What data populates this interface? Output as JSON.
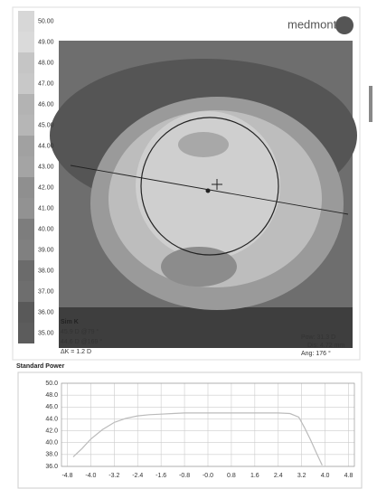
{
  "logo": "medmont",
  "scale": [
    "50.00",
    "49.00",
    "48.00",
    "47.00",
    "46.00",
    "45.00",
    "44.00",
    "43.00",
    "42.00",
    "41.00",
    "40.00",
    "39.00",
    "38.00",
    "37.00",
    "36.00",
    "35.00"
  ],
  "sim_k": {
    "title": "Sim K",
    "lines": [
      "45.9 D @79 °",
      "44.6 D @169 °",
      "ΔK = 1.2 D"
    ]
  },
  "cursor": [
    "Pow: 31.3 D",
    "Dis: 4.72 mm",
    "Ang: 176 °"
  ],
  "profile": {
    "type": "line",
    "title": "Standard Power",
    "x": [
      -4.6,
      -4.3,
      -4.0,
      -3.6,
      -3.2,
      -2.8,
      -2.4,
      -2.0,
      -1.6,
      -1.2,
      -0.8,
      -0.4,
      0,
      0.4,
      0.8,
      1.2,
      1.6,
      2.0,
      2.4,
      2.8,
      3.1,
      3.3,
      3.5,
      3.7,
      3.9
    ],
    "values": [
      37.6,
      39.0,
      40.6,
      42.2,
      43.4,
      44.1,
      44.5,
      44.7,
      44.8,
      44.9,
      45.0,
      45.0,
      45.0,
      45.0,
      45.0,
      45.0,
      45.0,
      45.0,
      45.0,
      44.9,
      44.3,
      42.5,
      40.5,
      38.3,
      36.2
    ],
    "color": "#bbbbbb",
    "xlim": [
      -5.0,
      5.0
    ],
    "ylim": [
      36,
      50
    ],
    "xticks": [
      -4.8,
      {
        "value": -4,
        "label": "-4.0"
      },
      -3.2,
      -2.4,
      -1.6,
      -0.8,
      {
        "value": 0,
        "label": "-0.0"
      },
      0.8,
      1.6,
      2.4,
      3.2,
      {
        "value": 4,
        "label": "4.0"
      },
      4.8
    ],
    "yticks": [
      {
        "value": 50,
        "label": "50.0"
      },
      {
        "value": 48,
        "label": "48.0"
      },
      {
        "value": 46,
        "label": "46.0"
      },
      {
        "value": 44,
        "label": "44.0"
      },
      {
        "value": 42,
        "label": "42.0"
      },
      {
        "value": 40,
        "label": "40.0"
      },
      {
        "value": 38,
        "label": "38.0"
      },
      {
        "value": 36,
        "label": "36.0"
      }
    ],
    "grid": true
  }
}
